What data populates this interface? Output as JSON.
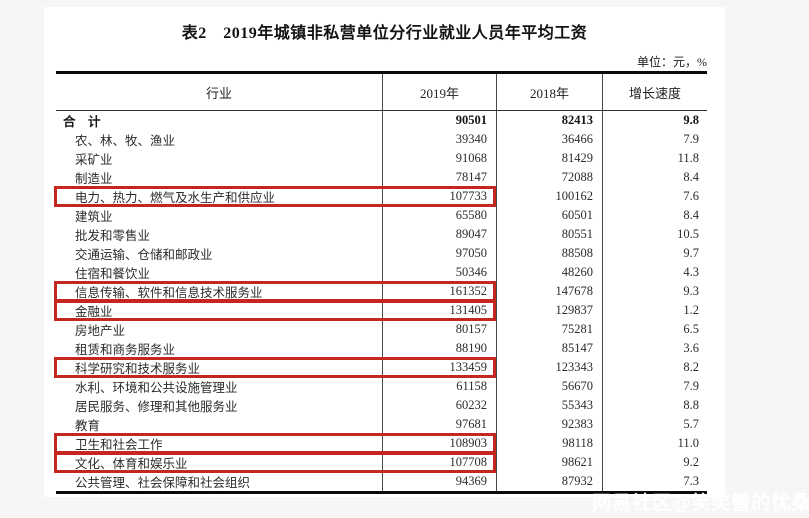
{
  "page": {
    "title": "表2　2019年城镇非私营单位分行业就业人员年平均工资",
    "unit_note": "单位：元，%",
    "watermark": "网易社区@笑笑蟹的忧桑"
  },
  "colors": {
    "highlight_border": "#c5261f",
    "document_background": "#ffffff",
    "canvas_background": "#f6f6f7"
  },
  "table": {
    "columns": [
      "行业",
      "2019年",
      "2018年",
      "增长速度"
    ],
    "rows": [
      {
        "industry": "合　计",
        "y2019": "90501",
        "y2018": "82413",
        "growth": "9.8",
        "bold": true,
        "highlighted": false
      },
      {
        "industry": "农、林、牧、渔业",
        "y2019": "39340",
        "y2018": "36466",
        "growth": "7.9",
        "bold": false,
        "highlighted": false
      },
      {
        "industry": "采矿业",
        "y2019": "91068",
        "y2018": "81429",
        "growth": "11.8",
        "bold": false,
        "highlighted": false
      },
      {
        "industry": "制造业",
        "y2019": "78147",
        "y2018": "72088",
        "growth": "8.4",
        "bold": false,
        "highlighted": false
      },
      {
        "industry": "电力、热力、燃气及水生产和供应业",
        "y2019": "107733",
        "y2018": "100162",
        "growth": "7.6",
        "bold": false,
        "highlighted": true
      },
      {
        "industry": "建筑业",
        "y2019": "65580",
        "y2018": "60501",
        "growth": "8.4",
        "bold": false,
        "highlighted": false
      },
      {
        "industry": "批发和零售业",
        "y2019": "89047",
        "y2018": "80551",
        "growth": "10.5",
        "bold": false,
        "highlighted": false
      },
      {
        "industry": "交通运输、仓储和邮政业",
        "y2019": "97050",
        "y2018": "88508",
        "growth": "9.7",
        "bold": false,
        "highlighted": false
      },
      {
        "industry": "住宿和餐饮业",
        "y2019": "50346",
        "y2018": "48260",
        "growth": "4.3",
        "bold": false,
        "highlighted": false
      },
      {
        "industry": "信息传输、软件和信息技术服务业",
        "y2019": "161352",
        "y2018": "147678",
        "growth": "9.3",
        "bold": false,
        "highlighted": true
      },
      {
        "industry": "金融业",
        "y2019": "131405",
        "y2018": "129837",
        "growth": "1.2",
        "bold": false,
        "highlighted": true
      },
      {
        "industry": "房地产业",
        "y2019": "80157",
        "y2018": "75281",
        "growth": "6.5",
        "bold": false,
        "highlighted": false
      },
      {
        "industry": "租赁和商务服务业",
        "y2019": "88190",
        "y2018": "85147",
        "growth": "3.6",
        "bold": false,
        "highlighted": false
      },
      {
        "industry": "科学研究和技术服务业",
        "y2019": "133459",
        "y2018": "123343",
        "growth": "8.2",
        "bold": false,
        "highlighted": true
      },
      {
        "industry": "水利、环境和公共设施管理业",
        "y2019": "61158",
        "y2018": "56670",
        "growth": "7.9",
        "bold": false,
        "highlighted": false
      },
      {
        "industry": "居民服务、修理和其他服务业",
        "y2019": "60232",
        "y2018": "55343",
        "growth": "8.8",
        "bold": false,
        "highlighted": false
      },
      {
        "industry": "教育",
        "y2019": "97681",
        "y2018": "92383",
        "growth": "5.7",
        "bold": false,
        "highlighted": false
      },
      {
        "industry": "卫生和社会工作",
        "y2019": "108903",
        "y2018": "98118",
        "growth": "11.0",
        "bold": false,
        "highlighted": true
      },
      {
        "industry": "文化、体育和娱乐业",
        "y2019": "107708",
        "y2018": "98621",
        "growth": "9.2",
        "bold": false,
        "highlighted": true
      },
      {
        "industry": "公共管理、社会保障和社会组织",
        "y2019": "94369",
        "y2018": "87932",
        "growth": "7.3",
        "bold": false,
        "highlighted": false
      }
    ]
  }
}
